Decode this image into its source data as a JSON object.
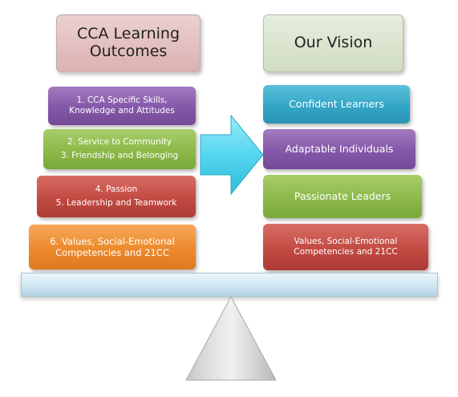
{
  "left_header": {
    "line1": "CCA Learning",
    "line2": "Outcomes"
  },
  "right_header": {
    "line1": "Our Vision"
  },
  "outcomes": [
    {
      "line1": "1. CCA Specific Skills,",
      "line2": "Knowledge and Attitudes",
      "color": "#8457a8"
    },
    {
      "line1": "2. Service to Community",
      "line2": "3. Friendship and Belonging",
      "color": "#8cb948"
    },
    {
      "line1": "4. Passion",
      "line2": "5. Leadership and Teamwork",
      "color": "#c24a42"
    },
    {
      "line1": "6. Values, Social-Emotional",
      "line2": "Competencies and 21CC",
      "color": "#ec8a2c"
    }
  ],
  "vision": [
    {
      "line1": "Confident Learners",
      "color": "#33a6c6"
    },
    {
      "line1": "Adaptable Individuals",
      "color": "#8457a8"
    },
    {
      "line1": "Passionate Leaders",
      "color": "#8cb948"
    },
    {
      "line1": "Values, Social-Emotional",
      "line2": "Competencies and 21CC",
      "color": "#c24a42"
    }
  ],
  "colors": {
    "arrow": "#55d6f0",
    "beam": "#cfe6f1",
    "fulcrum": "#e0e0e0"
  }
}
